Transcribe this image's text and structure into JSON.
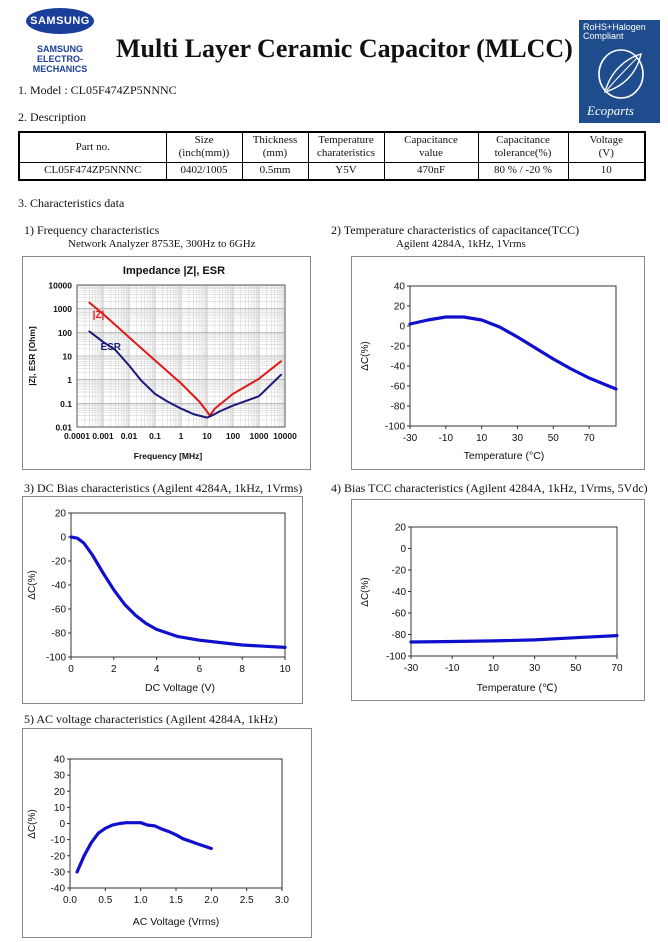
{
  "header": {
    "brand": "SAMSUNG",
    "brand_sub": [
      "SAMSUNG",
      "ELECTRO-MECHANICS"
    ],
    "title": "Multi Layer Ceramic Capacitor (MLCC)",
    "badge_lines": [
      "RoHS+Halogen",
      "Compliant"
    ],
    "badge_brand": "Ecoparts"
  },
  "model": "1. Model : CL05F474ZP5NNNC",
  "description_heading": "2. Description",
  "description_table": {
    "headers": [
      [
        "Part no."
      ],
      [
        "Size",
        "(inch(mm))"
      ],
      [
        "Thickness",
        "(mm)"
      ],
      [
        "Temperature",
        "charateristics"
      ],
      [
        "Capacitance",
        "value"
      ],
      [
        "Capacitance",
        "tolerance(%)"
      ],
      [
        "Voltage",
        "(V)"
      ]
    ],
    "row": [
      "CL05F474ZP5NNNC",
      "0402/1005",
      "0.5mm",
      "Y5V",
      "470nF",
      "80 % / -20 %",
      "10"
    ]
  },
  "characteristics_heading": "3. Characteristics data",
  "charts": {
    "freq": {
      "caption": "1) Frequency characteristics",
      "subcaption": "Network Analyzer 8753E, 300Hz to 6GHz"
    },
    "tcc": {
      "caption": "2) Temperature characteristics of capacitance(TCC)",
      "subcaption": "Agilent 4284A, 1kHz, 1Vrms"
    },
    "dcbias": {
      "caption": "3) DC Bias characteristics (Agilent 4284A, 1kHz, 1Vrms)"
    },
    "biastcc": {
      "caption": "4) Bias TCC characteristics (Agilent 4284A, 1kHz, 1Vrms, 5Vdc)"
    },
    "ac": {
      "caption": "5) AC voltage characteristics (Agilent 4284A, 1kHz)"
    }
  },
  "chart_data": [
    {
      "id": "freq",
      "type": "line",
      "title": "Impedance |Z|,  ESR",
      "xlabel": "Frequency [MHz]",
      "ylabel": "|Z|, ESR [Ohm]",
      "xscale": "log",
      "yscale": "log",
      "xlim": [
        0.0001,
        10000
      ],
      "ylim": [
        0.01,
        10000
      ],
      "xticks": [
        "0.0001",
        "0.001",
        "0.01",
        "0.1",
        "1",
        "10",
        "100",
        "1000",
        "10000"
      ],
      "yticks": [
        "0.01",
        "0.1",
        "1",
        "10",
        "100",
        "1000",
        "10000"
      ],
      "grid": true,
      "series": [
        {
          "name": "|Z|",
          "color": "#e01818",
          "x": [
            0.0003,
            0.001,
            0.01,
            0.1,
            1,
            5,
            10,
            13,
            20,
            100,
            1000,
            7000
          ],
          "y": [
            1800,
            600,
            62,
            6.5,
            0.7,
            0.12,
            0.045,
            0.03,
            0.06,
            0.25,
            1.1,
            6
          ]
        },
        {
          "name": "ESR",
          "color": "#1a1a7a",
          "x": [
            0.0003,
            0.001,
            0.003,
            0.01,
            0.03,
            0.1,
            0.3,
            1,
            3,
            10,
            15,
            30,
            100,
            1000,
            7000
          ],
          "y": [
            110,
            40,
            18,
            4,
            0.9,
            0.25,
            0.12,
            0.06,
            0.035,
            0.025,
            0.03,
            0.045,
            0.08,
            0.2,
            1.6
          ]
        }
      ]
    },
    {
      "id": "tcc",
      "type": "line",
      "xlabel": "Temperature (°C)",
      "ylabel": "ΔC(%)",
      "xlim": [
        -30,
        85
      ],
      "ylim": [
        -100,
        40
      ],
      "xticks": [
        "-30",
        "-10",
        "10",
        "30",
        "50",
        "70"
      ],
      "yticks": [
        "40",
        "20",
        "0",
        "-20",
        "-40",
        "-60",
        "-80",
        "-100"
      ],
      "series": [
        {
          "color": "#1010cc",
          "x": [
            -30,
            -20,
            -10,
            0,
            10,
            20,
            30,
            40,
            50,
            60,
            70,
            85
          ],
          "y": [
            2,
            6,
            9,
            9,
            6,
            -1,
            -11,
            -22,
            -33,
            -43,
            -52,
            -63
          ]
        }
      ]
    },
    {
      "id": "dcbias",
      "type": "line",
      "xlabel": "DC Voltage (V)",
      "ylabel": "ΔC(%)",
      "xlim": [
        0,
        10
      ],
      "ylim": [
        -100,
        20
      ],
      "xticks": [
        "0",
        "2",
        "4",
        "6",
        "8",
        "10"
      ],
      "yticks": [
        "20",
        "0",
        "-20",
        "-40",
        "-60",
        "-80",
        "-100"
      ],
      "series": [
        {
          "color": "#1010cc",
          "x": [
            0,
            0.3,
            0.6,
            1,
            1.5,
            2,
            2.5,
            3,
            3.5,
            4,
            5,
            6,
            7,
            8,
            9,
            10
          ],
          "y": [
            0,
            -1,
            -5,
            -15,
            -30,
            -44,
            -56,
            -65,
            -72,
            -77,
            -83,
            -86,
            -88,
            -90,
            -91,
            -92
          ]
        }
      ]
    },
    {
      "id": "biastcc",
      "type": "line",
      "xlabel": "Temperature (℃)",
      "ylabel": "ΔC(%)",
      "xlim": [
        -30,
        70
      ],
      "ylim": [
        -100,
        20
      ],
      "xticks": [
        "-30",
        "-10",
        "10",
        "30",
        "50",
        "70"
      ],
      "yticks": [
        "20",
        "0",
        "-20",
        "-40",
        "-60",
        "-80",
        "-100"
      ],
      "series": [
        {
          "color": "#1010cc",
          "x": [
            -30,
            -10,
            10,
            30,
            50,
            70
          ],
          "y": [
            -87,
            -86.5,
            -86,
            -85,
            -83,
            -81
          ]
        }
      ]
    },
    {
      "id": "ac",
      "type": "line",
      "xlabel": "AC Voltage (Vrms)",
      "ylabel": "ΔC(%)",
      "xlim": [
        0,
        3
      ],
      "ylim": [
        -40,
        40
      ],
      "xticks": [
        "0.0",
        "0.5",
        "1.0",
        "1.5",
        "2.0",
        "2.5",
        "3.0"
      ],
      "yticks": [
        "40",
        "30",
        "20",
        "10",
        "0",
        "-10",
        "-20",
        "-30",
        "-40"
      ],
      "series": [
        {
          "color": "#1010cc",
          "x": [
            0.1,
            0.2,
            0.3,
            0.4,
            0.5,
            0.6,
            0.7,
            0.8,
            0.9,
            1.0,
            1.1,
            1.2,
            1.3,
            1.4,
            1.5,
            1.6,
            1.7,
            1.8,
            1.9,
            2.0
          ],
          "y": [
            -30,
            -20,
            -12,
            -6,
            -3,
            -1,
            0,
            0.5,
            0.5,
            0.5,
            -1,
            -1.5,
            -3.5,
            -5,
            -7,
            -9.5,
            -11,
            -12.5,
            -14,
            -15.5
          ]
        }
      ]
    }
  ]
}
